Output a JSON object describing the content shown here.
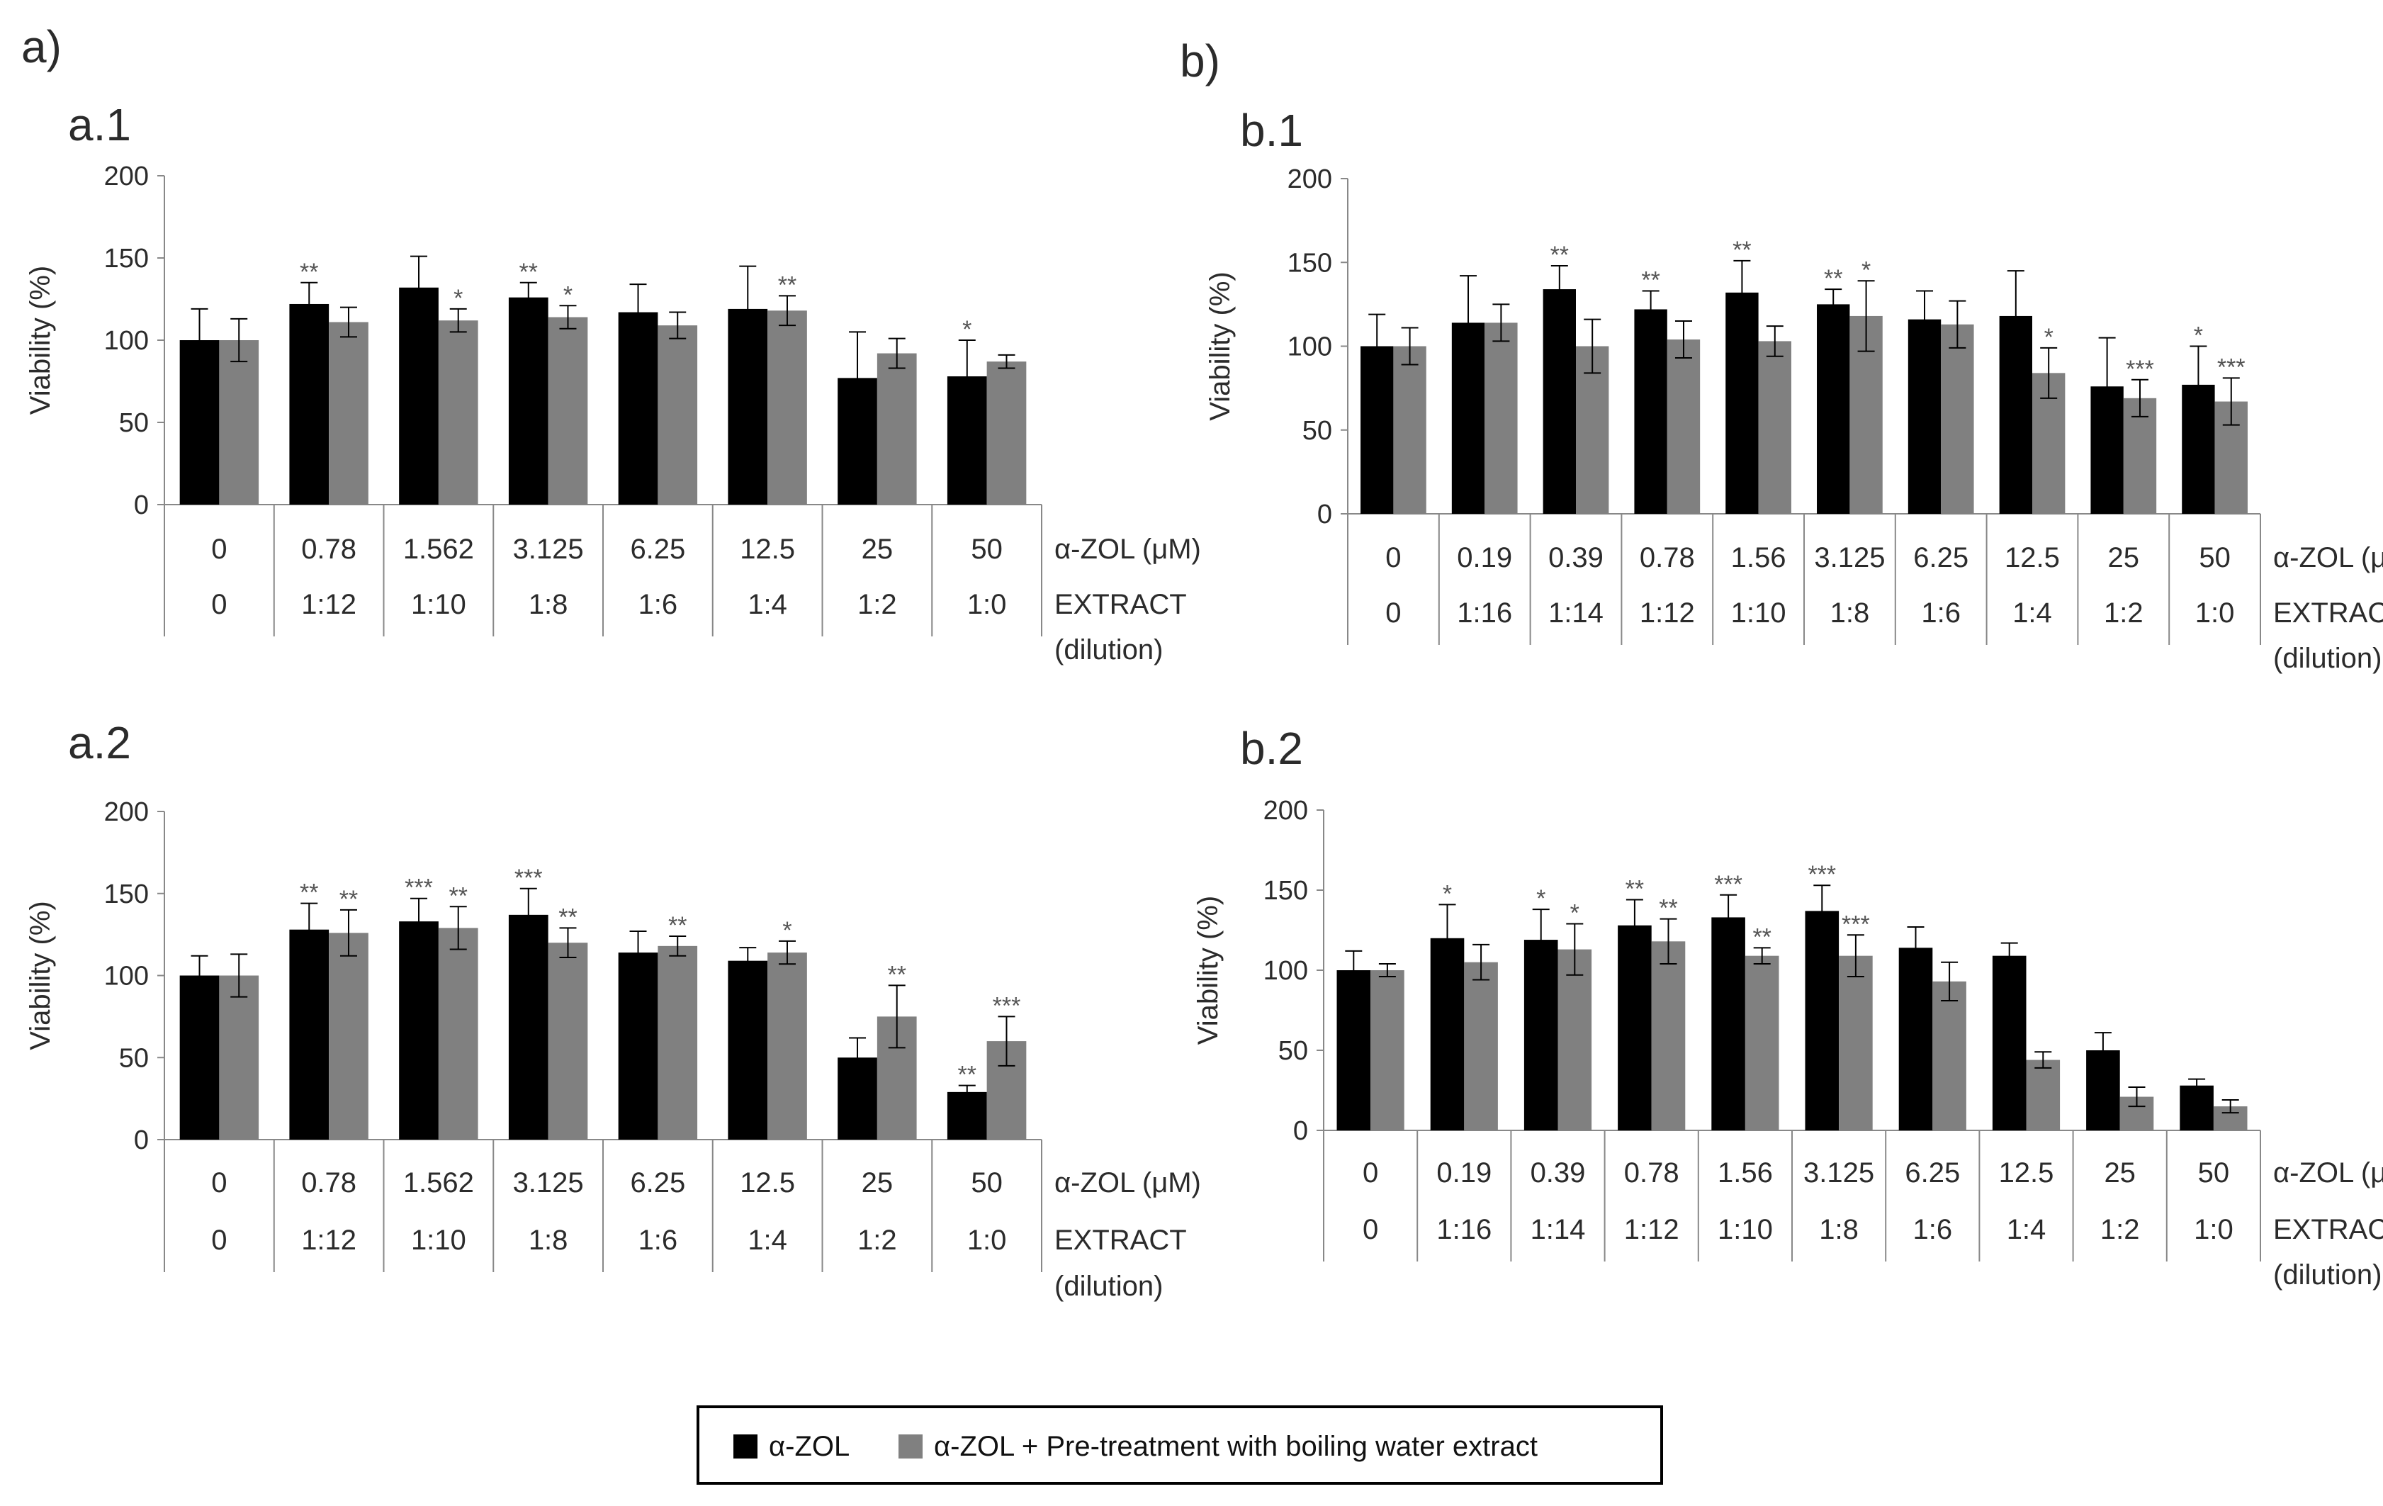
{
  "figure": {
    "panel_a_label": "a)",
    "panel_b_label": "b)",
    "legend": {
      "series1": "α-ZOL",
      "series2": "α-ZOL + Pre-treatment with boiling water extract",
      "color1": "#000000",
      "color2": "#808080"
    }
  },
  "chart_data": [
    {
      "id": "a1",
      "type": "bar",
      "title": "a.1",
      "ylabel": "Viability (%)",
      "ylim": [
        0,
        200
      ],
      "yticks": [
        0,
        50,
        100,
        150,
        200
      ],
      "row1_label": "α-ZOL (μM)",
      "row2_label": [
        "EXTRACT",
        "(dilution)"
      ],
      "categories": [
        "0",
        "0.78",
        "1.562",
        "3.125",
        "6.25",
        "12.5",
        "25",
        "50"
      ],
      "categories2": [
        "0",
        "1:12",
        "1:10",
        "1:8",
        "1:6",
        "1:4",
        "1:2",
        "1:0"
      ],
      "series": [
        {
          "name": "α-ZOL",
          "values": [
            100,
            122,
            132,
            126,
            117,
            119,
            77,
            78
          ],
          "errors": [
            19,
            13,
            19,
            9,
            17,
            26,
            28,
            22
          ],
          "sig": [
            "",
            "**",
            "",
            "**",
            "",
            "",
            "",
            "*"
          ]
        },
        {
          "name": "α-ZOL + Pre-treatment with boiling water extract",
          "values": [
            100,
            111,
            112,
            114,
            109,
            118,
            92,
            87
          ],
          "errors": [
            13,
            9,
            7,
            7,
            8,
            9,
            9,
            4
          ],
          "sig": [
            "",
            "",
            "*",
            "*",
            "",
            "**",
            "",
            ""
          ]
        }
      ]
    },
    {
      "id": "b1",
      "type": "bar",
      "title": "b.1",
      "ylabel": "Viability (%)",
      "ylim": [
        0,
        200
      ],
      "yticks": [
        0,
        50,
        100,
        150,
        200
      ],
      "row1_label": "α-ZOL (μM)",
      "row2_label": [
        "EXTRACT",
        "(dilution)"
      ],
      "categories": [
        "0",
        "0.19",
        "0.39",
        "0.78",
        "1.56",
        "3.125",
        "6.25",
        "12.5",
        "25",
        "50"
      ],
      "categories2": [
        "0",
        "1:16",
        "1:14",
        "1:12",
        "1:10",
        "1:8",
        "1:6",
        "1:4",
        "1:2",
        "1:0"
      ],
      "series": [
        {
          "name": "α-ZOL",
          "values": [
            100,
            114,
            134,
            122,
            132,
            125,
            116,
            118,
            76,
            77
          ],
          "errors": [
            19,
            28,
            14,
            11,
            19,
            9,
            17,
            27,
            29,
            23
          ],
          "sig": [
            "",
            "",
            "**",
            "**",
            "**",
            "**",
            "",
            "",
            "",
            "*"
          ]
        },
        {
          "name": "α-ZOL + Pre-treatment with boiling water extract",
          "values": [
            100,
            114,
            100,
            104,
            103,
            118,
            113,
            84,
            69,
            67
          ],
          "errors": [
            11,
            11,
            16,
            11,
            9,
            21,
            14,
            15,
            11,
            14
          ],
          "sig": [
            "",
            "",
            "",
            "",
            "",
            "*",
            "",
            "*",
            "***",
            "***"
          ]
        }
      ]
    },
    {
      "id": "a2",
      "type": "bar",
      "title": "a.2",
      "ylabel": "Viability (%)",
      "ylim": [
        0,
        200
      ],
      "yticks": [
        0,
        50,
        100,
        150,
        200
      ],
      "row1_label": "α-ZOL (μM)",
      "row2_label": [
        "EXTRACT",
        "(dilution)"
      ],
      "categories": [
        "0",
        "0.78",
        "1.562",
        "3.125",
        "6.25",
        "12.5",
        "25",
        "50"
      ],
      "categories2": [
        "0",
        "1:12",
        "1:10",
        "1:8",
        "1:6",
        "1:4",
        "1:2",
        "1:0"
      ],
      "series": [
        {
          "name": "α-ZOL",
          "values": [
            100,
            128,
            133,
            137,
            114,
            109,
            50,
            29
          ],
          "errors": [
            12,
            16,
            14,
            16,
            13,
            8,
            12,
            4
          ],
          "sig": [
            "",
            "**",
            "***",
            "***",
            "",
            "",
            "",
            "**"
          ]
        },
        {
          "name": "α-ZOL + Pre-treatment with boiling water extract",
          "values": [
            100,
            126,
            129,
            120,
            118,
            114,
            75,
            60
          ],
          "errors": [
            13,
            14,
            13,
            9,
            6,
            7,
            19,
            15
          ],
          "sig": [
            "",
            "**",
            "**",
            "**",
            "**",
            "*",
            "**",
            "***"
          ]
        }
      ]
    },
    {
      "id": "b2",
      "type": "bar",
      "title": "b.2",
      "ylabel": "Viability (%)",
      "ylim": [
        0,
        200
      ],
      "yticks": [
        0,
        50,
        100,
        150,
        200
      ],
      "row1_label": "α-ZOL (μM)",
      "row2_label": [
        "EXTRACT",
        "(dilution)"
      ],
      "categories": [
        "0",
        "0.19",
        "0.39",
        "0.78",
        "1.56",
        "3.125",
        "6.25",
        "12.5",
        "25",
        "50"
      ],
      "categories2": [
        "0",
        "1:16",
        "1:14",
        "1:12",
        "1:10",
        "1:8",
        "1:6",
        "1:4",
        "1:2",
        "1:0"
      ],
      "series": [
        {
          "name": "α-ZOL",
          "values": [
            100,
            120,
            119,
            128,
            133,
            137,
            114,
            109,
            50,
            28
          ],
          "errors": [
            12,
            21,
            19,
            16,
            14,
            16,
            13,
            8,
            11,
            4
          ],
          "sig": [
            "",
            "*",
            "*",
            "**",
            "***",
            "***",
            "",
            "",
            "",
            ""
          ]
        },
        {
          "name": "α-ZOL + Pre-treatment with boiling water extract",
          "values": [
            100,
            105,
            113,
            118,
            109,
            109,
            93,
            44,
            21,
            15
          ],
          "errors": [
            4,
            11,
            16,
            14,
            5,
            13,
            12,
            5,
            6,
            4
          ],
          "sig": [
            "",
            "",
            "*",
            "**",
            "**",
            "***",
            "",
            "",
            "",
            ""
          ]
        }
      ]
    }
  ]
}
